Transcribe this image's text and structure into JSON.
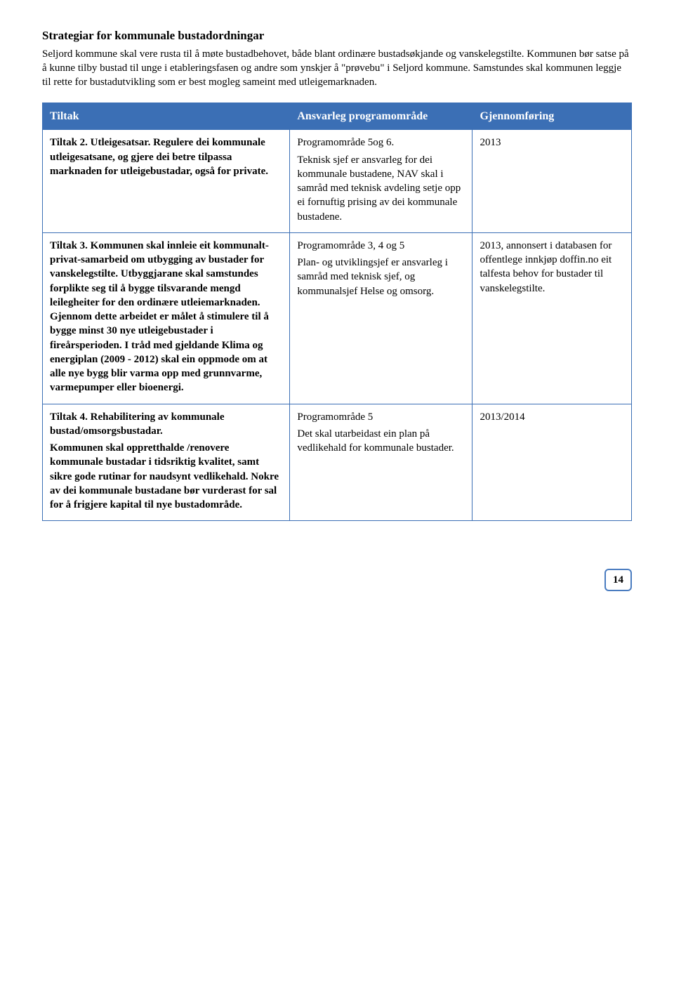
{
  "heading": "Strategiar for kommunale bustadordningar",
  "intro": "Seljord kommune skal vere rusta til å møte bustadbehovet, både blant ordinære bustadsøkjande og vanskelegstilte. Kommunen bør satse på å kunne tilby bustad til unge i etableringsfasen og andre som ynskjer å \"prøvebu\" i Seljord kommune. Samstundes skal kommunen leggje til rette for bustadutvikling som er best mogleg sameint med utleigemarknaden.",
  "table": {
    "headers": {
      "tiltak": "Tiltak",
      "ansvarleg": "Ansvarleg programområde",
      "gjennom": "Gjennomføring"
    },
    "rows": [
      {
        "tiltak_label": "Tiltak 2. Utleigesatsar. Regulere dei kommunale utleigesatsane, og gjere dei betre tilpassa marknaden for utleigebustadar, også for private.",
        "tiltak_rest": "",
        "ansvar_line1": "Programområde 5og 6.",
        "ansvar_rest": "Teknisk sjef er ansvarleg for dei kommunale bustadene, NAV skal i samråd med teknisk avdeling setje opp ei fornuftig prising av dei kommunale bustadene.",
        "gjennom": "2013"
      },
      {
        "tiltak_label": "Tiltak 3. Kommunen skal innleie eit kommunalt-privat-samarbeid om utbygging av bustader for vanskelegstilte. Utbyggjarane skal samstundes forplikte seg til å bygge tilsvarande mengd leilegheiter for den ordinære utleiemarknaden. Gjennom dette arbeidet er målet å stimulere til å bygge minst 30 nye utleigebustader i fireårsperioden. I tråd med gjeldande Klima og energiplan (2009 - 2012) skal ein oppmode om at alle nye bygg blir varma opp med grunnvarme, varmepumper eller bioenergi.",
        "tiltak_rest": "",
        "ansvar_line1": "Programområde 3, 4 og 5",
        "ansvar_rest": "Plan- og utviklingsjef er ansvarleg i samråd med teknisk sjef, og kommunalsjef Helse og omsorg.",
        "gjennom": "2013, annonsert i databasen for offentlege innkjøp doffin.no eit talfesta behov for bustader til vanskelegstilte."
      },
      {
        "tiltak_label": "Tiltak 4. Rehabilitering av kommunale bustad/omsorgsbustadar.",
        "tiltak_rest": "Kommunen skal oppretthalde /renovere kommunale bustadar i tidsriktig kvalitet, samt sikre gode rutinar for naudsynt vedlikehald. Nokre av dei kommunale bustadane bør vurderast for sal for å frigjere kapital til nye bustadområde.",
        "ansvar_line1": "Programområde 5",
        "ansvar_rest": "Det skal utarbeidast ein plan på vedlikehald for kommunale bustader.",
        "gjennom": "2013/2014"
      }
    ]
  },
  "page_number": "14",
  "colors": {
    "header_bg": "#3b6fb5",
    "header_text": "#ffffff",
    "border": "#3b6fb5",
    "pagebox_border": "#4a7cc0"
  }
}
